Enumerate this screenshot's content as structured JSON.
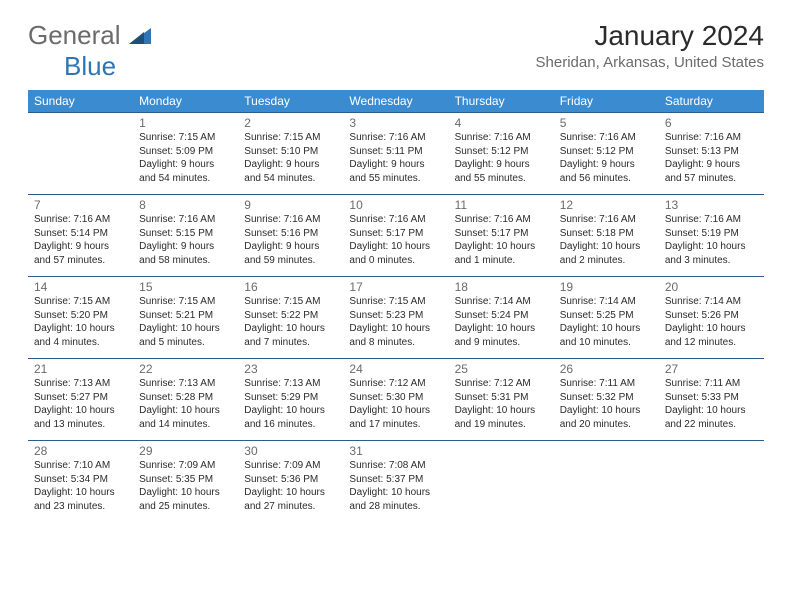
{
  "logo": {
    "text1": "General",
    "text2": "Blue"
  },
  "title": "January 2024",
  "location": "Sheridan, Arkansas, United States",
  "colors": {
    "header_bg": "#3b8bd0",
    "header_text": "#ffffff",
    "row_border": "#2e5c8a",
    "daynum": "#6b6b6b",
    "body_text": "#2b2b2b",
    "logo_gray": "#6b6b6b",
    "logo_blue": "#2e75b6"
  },
  "day_headers": [
    "Sunday",
    "Monday",
    "Tuesday",
    "Wednesday",
    "Thursday",
    "Friday",
    "Saturday"
  ],
  "weeks": [
    [
      null,
      {
        "n": "1",
        "sr": "Sunrise: 7:15 AM",
        "ss": "Sunset: 5:09 PM",
        "dl1": "Daylight: 9 hours",
        "dl2": "and 54 minutes."
      },
      {
        "n": "2",
        "sr": "Sunrise: 7:15 AM",
        "ss": "Sunset: 5:10 PM",
        "dl1": "Daylight: 9 hours",
        "dl2": "and 54 minutes."
      },
      {
        "n": "3",
        "sr": "Sunrise: 7:16 AM",
        "ss": "Sunset: 5:11 PM",
        "dl1": "Daylight: 9 hours",
        "dl2": "and 55 minutes."
      },
      {
        "n": "4",
        "sr": "Sunrise: 7:16 AM",
        "ss": "Sunset: 5:12 PM",
        "dl1": "Daylight: 9 hours",
        "dl2": "and 55 minutes."
      },
      {
        "n": "5",
        "sr": "Sunrise: 7:16 AM",
        "ss": "Sunset: 5:12 PM",
        "dl1": "Daylight: 9 hours",
        "dl2": "and 56 minutes."
      },
      {
        "n": "6",
        "sr": "Sunrise: 7:16 AM",
        "ss": "Sunset: 5:13 PM",
        "dl1": "Daylight: 9 hours",
        "dl2": "and 57 minutes."
      }
    ],
    [
      {
        "n": "7",
        "sr": "Sunrise: 7:16 AM",
        "ss": "Sunset: 5:14 PM",
        "dl1": "Daylight: 9 hours",
        "dl2": "and 57 minutes."
      },
      {
        "n": "8",
        "sr": "Sunrise: 7:16 AM",
        "ss": "Sunset: 5:15 PM",
        "dl1": "Daylight: 9 hours",
        "dl2": "and 58 minutes."
      },
      {
        "n": "9",
        "sr": "Sunrise: 7:16 AM",
        "ss": "Sunset: 5:16 PM",
        "dl1": "Daylight: 9 hours",
        "dl2": "and 59 minutes."
      },
      {
        "n": "10",
        "sr": "Sunrise: 7:16 AM",
        "ss": "Sunset: 5:17 PM",
        "dl1": "Daylight: 10 hours",
        "dl2": "and 0 minutes."
      },
      {
        "n": "11",
        "sr": "Sunrise: 7:16 AM",
        "ss": "Sunset: 5:17 PM",
        "dl1": "Daylight: 10 hours",
        "dl2": "and 1 minute."
      },
      {
        "n": "12",
        "sr": "Sunrise: 7:16 AM",
        "ss": "Sunset: 5:18 PM",
        "dl1": "Daylight: 10 hours",
        "dl2": "and 2 minutes."
      },
      {
        "n": "13",
        "sr": "Sunrise: 7:16 AM",
        "ss": "Sunset: 5:19 PM",
        "dl1": "Daylight: 10 hours",
        "dl2": "and 3 minutes."
      }
    ],
    [
      {
        "n": "14",
        "sr": "Sunrise: 7:15 AM",
        "ss": "Sunset: 5:20 PM",
        "dl1": "Daylight: 10 hours",
        "dl2": "and 4 minutes."
      },
      {
        "n": "15",
        "sr": "Sunrise: 7:15 AM",
        "ss": "Sunset: 5:21 PM",
        "dl1": "Daylight: 10 hours",
        "dl2": "and 5 minutes."
      },
      {
        "n": "16",
        "sr": "Sunrise: 7:15 AM",
        "ss": "Sunset: 5:22 PM",
        "dl1": "Daylight: 10 hours",
        "dl2": "and 7 minutes."
      },
      {
        "n": "17",
        "sr": "Sunrise: 7:15 AM",
        "ss": "Sunset: 5:23 PM",
        "dl1": "Daylight: 10 hours",
        "dl2": "and 8 minutes."
      },
      {
        "n": "18",
        "sr": "Sunrise: 7:14 AM",
        "ss": "Sunset: 5:24 PM",
        "dl1": "Daylight: 10 hours",
        "dl2": "and 9 minutes."
      },
      {
        "n": "19",
        "sr": "Sunrise: 7:14 AM",
        "ss": "Sunset: 5:25 PM",
        "dl1": "Daylight: 10 hours",
        "dl2": "and 10 minutes."
      },
      {
        "n": "20",
        "sr": "Sunrise: 7:14 AM",
        "ss": "Sunset: 5:26 PM",
        "dl1": "Daylight: 10 hours",
        "dl2": "and 12 minutes."
      }
    ],
    [
      {
        "n": "21",
        "sr": "Sunrise: 7:13 AM",
        "ss": "Sunset: 5:27 PM",
        "dl1": "Daylight: 10 hours",
        "dl2": "and 13 minutes."
      },
      {
        "n": "22",
        "sr": "Sunrise: 7:13 AM",
        "ss": "Sunset: 5:28 PM",
        "dl1": "Daylight: 10 hours",
        "dl2": "and 14 minutes."
      },
      {
        "n": "23",
        "sr": "Sunrise: 7:13 AM",
        "ss": "Sunset: 5:29 PM",
        "dl1": "Daylight: 10 hours",
        "dl2": "and 16 minutes."
      },
      {
        "n": "24",
        "sr": "Sunrise: 7:12 AM",
        "ss": "Sunset: 5:30 PM",
        "dl1": "Daylight: 10 hours",
        "dl2": "and 17 minutes."
      },
      {
        "n": "25",
        "sr": "Sunrise: 7:12 AM",
        "ss": "Sunset: 5:31 PM",
        "dl1": "Daylight: 10 hours",
        "dl2": "and 19 minutes."
      },
      {
        "n": "26",
        "sr": "Sunrise: 7:11 AM",
        "ss": "Sunset: 5:32 PM",
        "dl1": "Daylight: 10 hours",
        "dl2": "and 20 minutes."
      },
      {
        "n": "27",
        "sr": "Sunrise: 7:11 AM",
        "ss": "Sunset: 5:33 PM",
        "dl1": "Daylight: 10 hours",
        "dl2": "and 22 minutes."
      }
    ],
    [
      {
        "n": "28",
        "sr": "Sunrise: 7:10 AM",
        "ss": "Sunset: 5:34 PM",
        "dl1": "Daylight: 10 hours",
        "dl2": "and 23 minutes."
      },
      {
        "n": "29",
        "sr": "Sunrise: 7:09 AM",
        "ss": "Sunset: 5:35 PM",
        "dl1": "Daylight: 10 hours",
        "dl2": "and 25 minutes."
      },
      {
        "n": "30",
        "sr": "Sunrise: 7:09 AM",
        "ss": "Sunset: 5:36 PM",
        "dl1": "Daylight: 10 hours",
        "dl2": "and 27 minutes."
      },
      {
        "n": "31",
        "sr": "Sunrise: 7:08 AM",
        "ss": "Sunset: 5:37 PM",
        "dl1": "Daylight: 10 hours",
        "dl2": "and 28 minutes."
      },
      null,
      null,
      null
    ]
  ]
}
